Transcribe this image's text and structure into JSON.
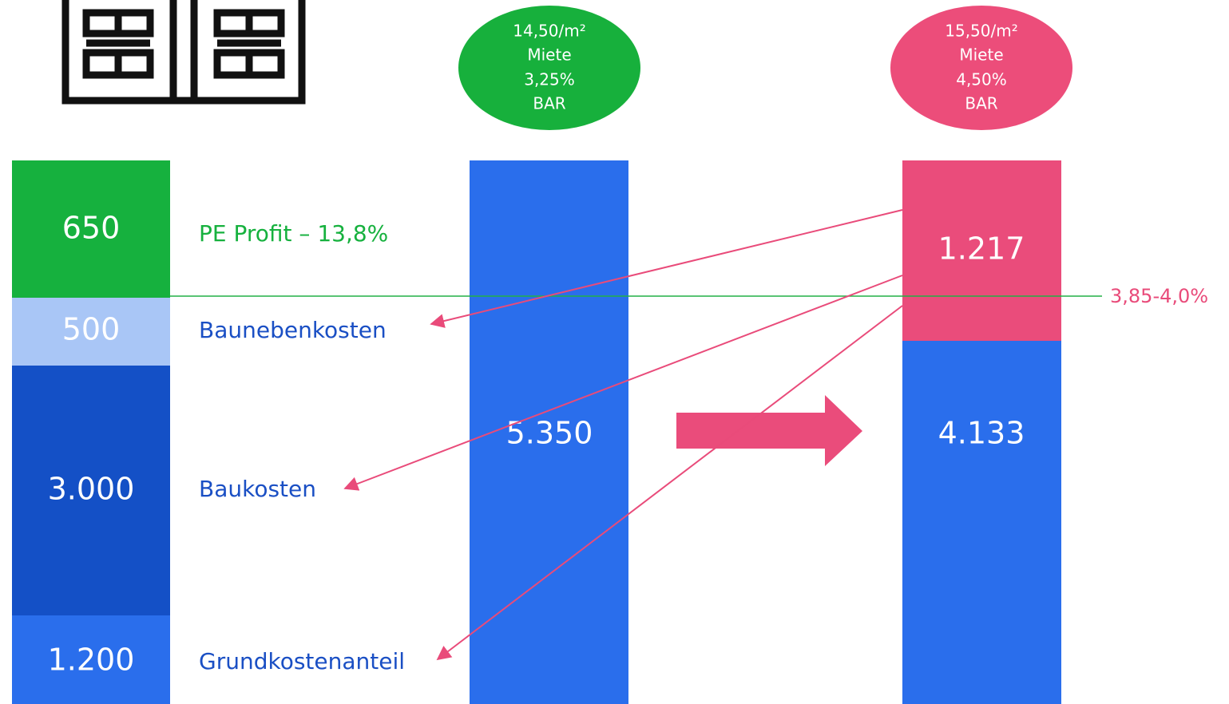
{
  "left_column": {
    "segments": [
      "650",
      "500",
      "3.000",
      "1.200"
    ],
    "labels": [
      "PE Profit – 13,8%",
      "Baunebenkosten",
      "Baukosten",
      "Grundkostenanteil"
    ]
  },
  "middle_column": {
    "bubble": [
      "14,50/m²",
      "Miete",
      "3,25%",
      "BAR"
    ],
    "total": "5.350"
  },
  "right_column": {
    "bubble": [
      "15,50/m²",
      "Miete",
      "4,50%",
      "BAR"
    ],
    "segments": [
      "1.217",
      "4.133"
    ]
  },
  "threshold_label": "3,85-4,0%"
}
